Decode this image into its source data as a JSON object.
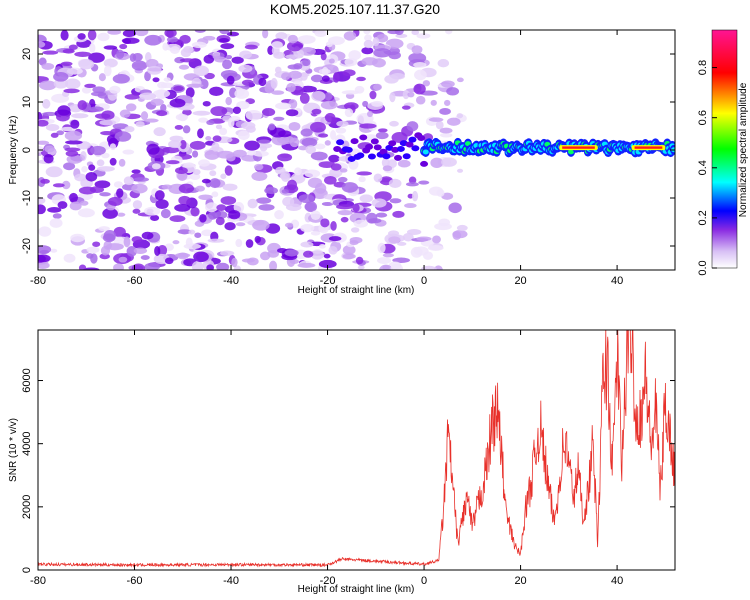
{
  "title": "KOM5.2025.107.11.37.G20",
  "chart_data": [
    {
      "type": "heatmap",
      "xlabel": "Height of straight line (km)",
      "ylabel": "Frequency (Hz)",
      "xlim": [
        -80,
        52
      ],
      "ylim": [
        -25,
        25
      ],
      "xticks": [
        -80,
        -60,
        -40,
        -20,
        0,
        20,
        40
      ],
      "yticks": [
        -20,
        -10,
        0,
        10,
        20
      ],
      "grid": false,
      "colorbar": {
        "label": "Normalized spectral amplitude",
        "range": [
          0,
          0.95
        ],
        "ticks": [
          "0.0",
          "0.2",
          "0.4",
          "0.6",
          "0.8"
        ],
        "colors": [
          "#ffffff",
          "#c9a2f2",
          "#8a2be2",
          "#0000ff",
          "#00ffff",
          "#00ff00",
          "#ffff00",
          "#ff0000",
          "#ff1493"
        ]
      },
      "description_values": {
        "noise_region_x": [
          -80,
          0
        ],
        "signal_band_x": [
          0,
          52
        ],
        "signal_band_freq": [
          -1,
          2
        ],
        "peak_regions_x": [
          [
            28,
            36
          ],
          [
            43,
            50
          ]
        ]
      }
    },
    {
      "type": "line",
      "xlabel": "Height of straight line (km)",
      "ylabel": "SNR (10 * v/v)",
      "xlim": [
        -80,
        52
      ],
      "ylim": [
        0,
        7600
      ],
      "xticks": [
        -80,
        -60,
        -40,
        -20,
        0,
        20,
        40
      ],
      "yticks": [
        0,
        2000,
        4000,
        6000
      ],
      "color": "#e8302a",
      "x": [
        -80,
        -60,
        -40,
        -20,
        -17,
        0,
        3,
        4,
        5,
        6,
        7,
        8,
        9,
        10,
        11,
        12,
        13,
        14,
        15,
        16,
        17,
        18,
        19,
        20,
        21,
        22,
        23,
        24,
        25,
        26,
        27,
        28,
        29,
        30,
        31,
        32,
        33,
        34,
        35,
        36,
        37,
        38,
        39,
        40,
        41,
        42,
        43,
        44,
        45,
        46,
        47,
        48,
        49,
        50,
        51,
        52
      ],
      "y": [
        180,
        160,
        170,
        160,
        350,
        180,
        300,
        1800,
        4300,
        2600,
        800,
        1700,
        2300,
        1300,
        2000,
        2500,
        3300,
        4500,
        5200,
        3800,
        1800,
        1200,
        700,
        500,
        1900,
        2600,
        3600,
        4600,
        3500,
        2400,
        1500,
        2700,
        4200,
        3400,
        2300,
        3200,
        1600,
        2500,
        4000,
        800,
        5800,
        6700,
        3000,
        7000,
        3200,
        6800,
        7600,
        4600,
        5000,
        6200,
        3800,
        5100,
        2500,
        5400,
        4200,
        3000
      ]
    }
  ]
}
